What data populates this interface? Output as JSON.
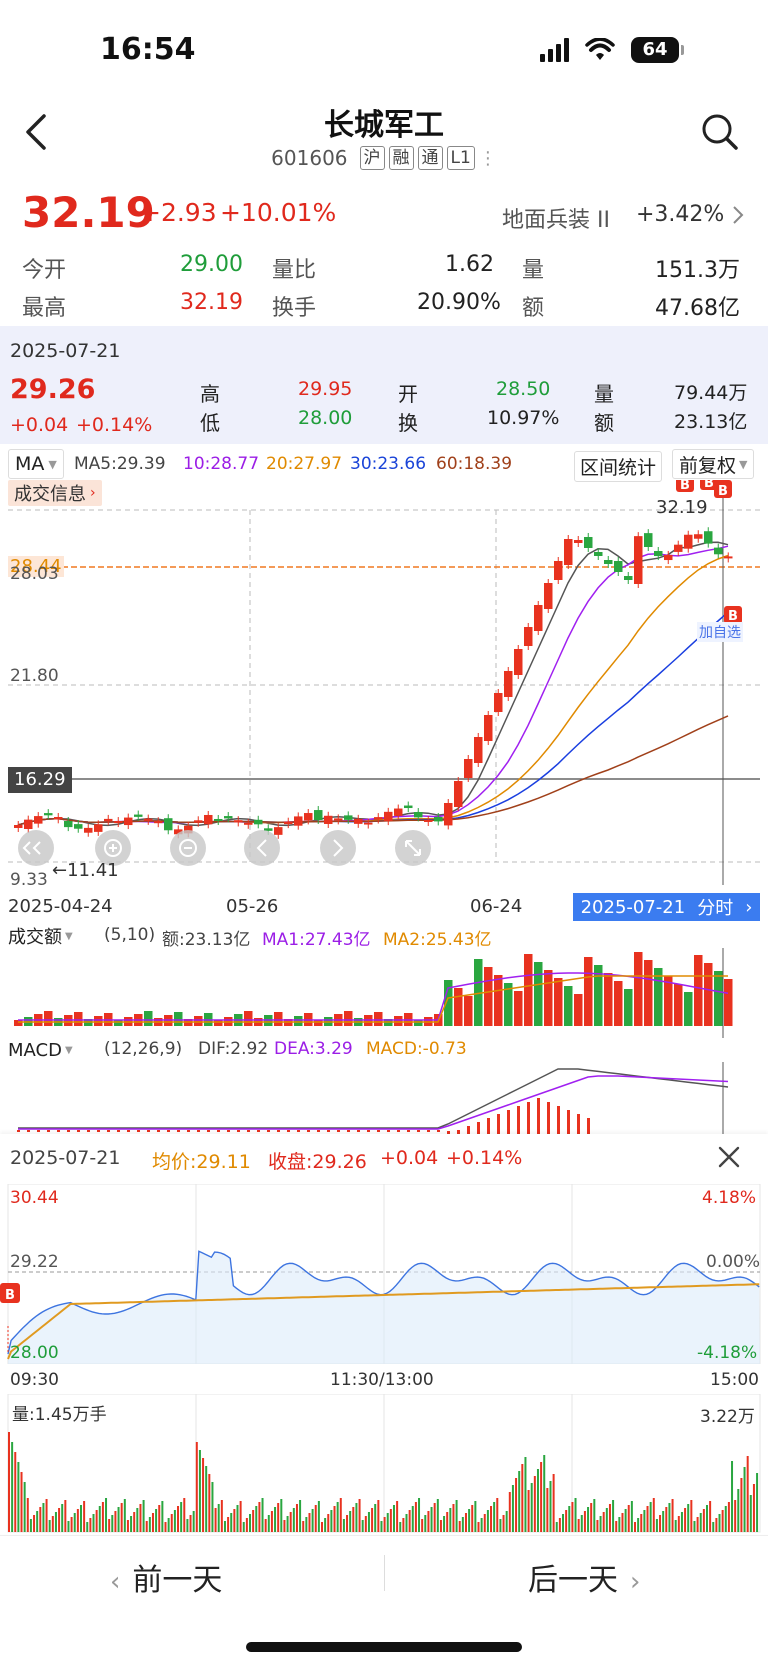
{
  "status_bar": {
    "time": "16:54",
    "battery": "64"
  },
  "header": {
    "title": "长城军工",
    "code": "601606",
    "tags": [
      "沪",
      "融",
      "通",
      "L1"
    ]
  },
  "quote": {
    "price": "32.19",
    "change": "+2.93",
    "change_pct": "+10.01%",
    "sector_name": "地面兵装 II",
    "sector_change": "+3.42%",
    "rows": [
      [
        {
          "label": "今开",
          "value": "29.00"
        },
        {
          "label": "量比",
          "value": "1.62"
        },
        {
          "label": "量",
          "value": "151.3万"
        }
      ],
      [
        {
          "label": "最高",
          "value": "32.19"
        },
        {
          "label": "换手",
          "value": "20.90%"
        },
        {
          "label": "额",
          "value": "47.68亿"
        }
      ]
    ]
  },
  "day_detail": {
    "date": "2025-07-21",
    "close": "29.26",
    "change": "+0.04",
    "change_pct": "+0.14%",
    "high_label": "高",
    "high": "29.95",
    "low_label": "低",
    "low": "28.00",
    "open_label": "开",
    "open": "28.50",
    "turnover_label": "换",
    "turnover": "10.97%",
    "volume_label": "量",
    "volume": "79.44万",
    "amount_label": "额",
    "amount": "23.13亿"
  },
  "kline": {
    "indicator": "MA",
    "ma5": "MA5:29.39",
    "ma10": "10:28.77",
    "ma20": "20:27.97",
    "ma30": "30:23.66",
    "ma60": "60:18.39",
    "interval_stats": "区间统计",
    "adjust": "前复权",
    "trade_info": "成交信息",
    "y_labels": [
      "32.19",
      "28.03",
      "21.80",
      "16.29",
      "9.33"
    ],
    "hline_label": "28.44",
    "low_marker": "←11.41",
    "x_labels": [
      "2025-04-24",
      "05-26",
      "06-24"
    ],
    "cursor_date": "2025-07-21",
    "cursor_mode": "分时",
    "add_watch": "加自选",
    "b_marker": "B",
    "colors": {
      "up": "#e8321f",
      "down": "#2aa640",
      "ma5": "#555555",
      "ma10": "#a020f0",
      "ma20": "#e08a00",
      "ma30": "#1a3fe0",
      "ma60": "#a0401a"
    }
  },
  "volume_panel": {
    "title": "成交额",
    "params": "(5,10)",
    "amount": "额:23.13亿",
    "ma1": "MA1:27.43亿",
    "ma2": "MA2:25.43亿"
  },
  "macd_panel": {
    "title": "MACD",
    "params": "(12,26,9)",
    "dif": "DIF:2.92",
    "dea": "DEA:3.29",
    "macd": "MACD:-0.73"
  },
  "intraday": {
    "date": "2025-07-21",
    "avg": "均价:29.11",
    "close": "收盘:29.26",
    "change": "+0.04",
    "change_pct": "+0.14%",
    "y_left": [
      "30.44",
      "29.22",
      "28.00"
    ],
    "y_right": [
      "4.18%",
      "0.00%",
      "-4.18%"
    ],
    "x_labels": [
      "09:30",
      "11:30/13:00",
      "15:00"
    ],
    "volume_label": "量:1.45万手",
    "volume_max": "3.22万"
  },
  "bottom": {
    "prev": "前一天",
    "next": "后一天"
  }
}
